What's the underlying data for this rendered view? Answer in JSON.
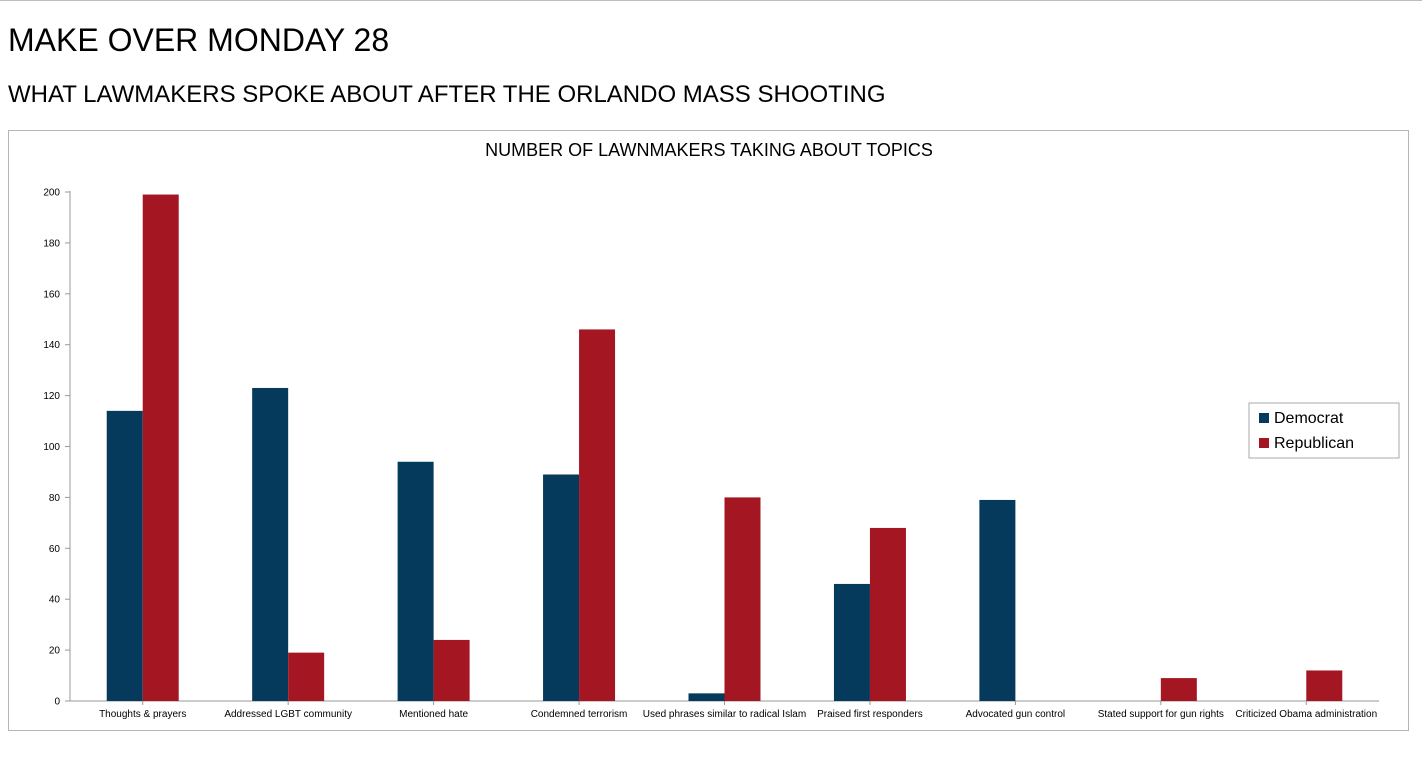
{
  "page": {
    "title": "MAKE OVER MONDAY 28",
    "subtitle": "WHAT LAWMAKERS SPOKE ABOUT AFTER THE ORLANDO MASS SHOOTING"
  },
  "colors": {
    "democrat": "#053a5c",
    "republican": "#a31622",
    "axis": "#999999",
    "frame": "#b5b5b5"
  },
  "chart_data": {
    "type": "bar",
    "title": "NUMBER OF LAWNMAKERS TAKING ABOUT TOPICS",
    "xlabel": "",
    "ylabel": "",
    "ylim": [
      0,
      200
    ],
    "yticks": [
      0,
      20,
      40,
      60,
      80,
      100,
      120,
      140,
      160,
      180,
      200
    ],
    "grid": false,
    "legend_position": "right",
    "categories": [
      "Thoughts & prayers",
      "Addressed LGBT community",
      "Mentioned hate",
      "Condemned terrorism",
      "Used phrases similar to radical Islam",
      "Praised first responders",
      "Advocated gun control",
      "Stated support for gun rights",
      "Criticized Obama administration"
    ],
    "series": [
      {
        "name": "Democrat",
        "color": "#053a5c",
        "values": [
          114,
          123,
          94,
          89,
          3,
          46,
          79,
          0,
          0
        ]
      },
      {
        "name": "Republican",
        "color": "#a31622",
        "values": [
          199,
          19,
          24,
          146,
          80,
          68,
          0,
          9,
          12
        ]
      }
    ]
  }
}
